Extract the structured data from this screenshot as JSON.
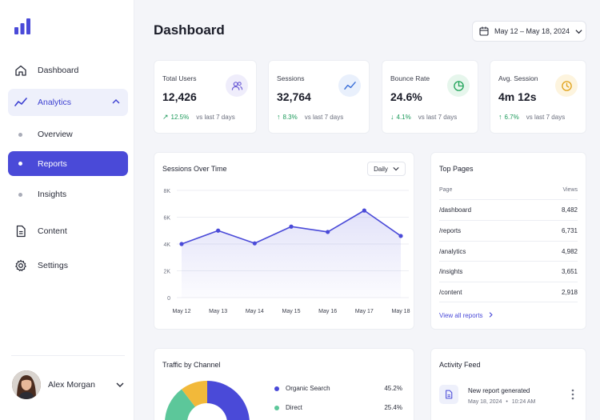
{
  "sidebar": {
    "items": [
      {
        "label": "Dashboard",
        "icon": "home-icon"
      },
      {
        "label": "Analytics",
        "icon": "trend-icon"
      },
      {
        "label": "Overview"
      },
      {
        "label": "Reports"
      },
      {
        "label": "Insights"
      },
      {
        "label": "Content",
        "icon": "document-icon"
      },
      {
        "label": "Settings",
        "icon": "gear-icon"
      }
    ],
    "user": {
      "name": "Alex Morgan"
    }
  },
  "header": {
    "title": "Dashboard",
    "date_range": "May 12 – May 18, 2024"
  },
  "stats": [
    {
      "label": "Total Users",
      "value": "12,426",
      "change": "12.5%",
      "compare": "vs last 7 days",
      "icon": "users-icon",
      "direction": "up",
      "color": "#6b5cd6"
    },
    {
      "label": "Sessions",
      "value": "32,764",
      "change": "8.3%",
      "compare": "vs last 7 days",
      "icon": "trend-icon",
      "direction": "up",
      "color": "#3b6fd8"
    },
    {
      "label": "Bounce Rate",
      "value": "24.6%",
      "change": "4.1%",
      "compare": "vs last 7 days",
      "icon": "pie-icon",
      "direction": "down",
      "color": "#22a45a"
    },
    {
      "label": "Avg. Session",
      "value": "4m 12s",
      "change": "6.7%",
      "compare": "vs last 7 days",
      "icon": "clock-icon",
      "direction": "up",
      "color": "#e0a21a"
    }
  ],
  "sessions_chart": {
    "title": "Sessions Over Time",
    "period": "Daily"
  },
  "chart_data": {
    "type": "area",
    "categories": [
      "May 12",
      "May 13",
      "May 14",
      "May 15",
      "May 16",
      "May 17",
      "May 18"
    ],
    "values": [
      4000,
      5000,
      4050,
      5300,
      4900,
      6500,
      4600
    ],
    "yticks": [
      "0",
      "2K",
      "4K",
      "6K",
      "8K"
    ],
    "ylim": [
      0,
      8000
    ],
    "grid": true,
    "color": "#4a4ad8"
  },
  "top_pages": {
    "title": "Top Pages",
    "col_page": "Page",
    "col_views": "Views",
    "rows": [
      {
        "page": "/dashboard",
        "views": "8,482"
      },
      {
        "page": "/reports",
        "views": "6,731"
      },
      {
        "page": "/analytics",
        "views": "4,982"
      },
      {
        "page": "/insights",
        "views": "3,651"
      },
      {
        "page": "/content",
        "views": "2,918"
      }
    ],
    "view_all": "View all reports"
  },
  "traffic": {
    "title": "Traffic by Channel",
    "channels": [
      {
        "name": "Organic Search",
        "pct": "45.2%",
        "color": "#4a4ad8"
      },
      {
        "name": "Direct",
        "pct": "25.4%",
        "color": "#5cc79a"
      }
    ]
  },
  "activity": {
    "title": "Activity Feed",
    "items": [
      {
        "title": "New report generated",
        "date": "May 18, 2024",
        "time": "10:24 AM"
      }
    ]
  }
}
